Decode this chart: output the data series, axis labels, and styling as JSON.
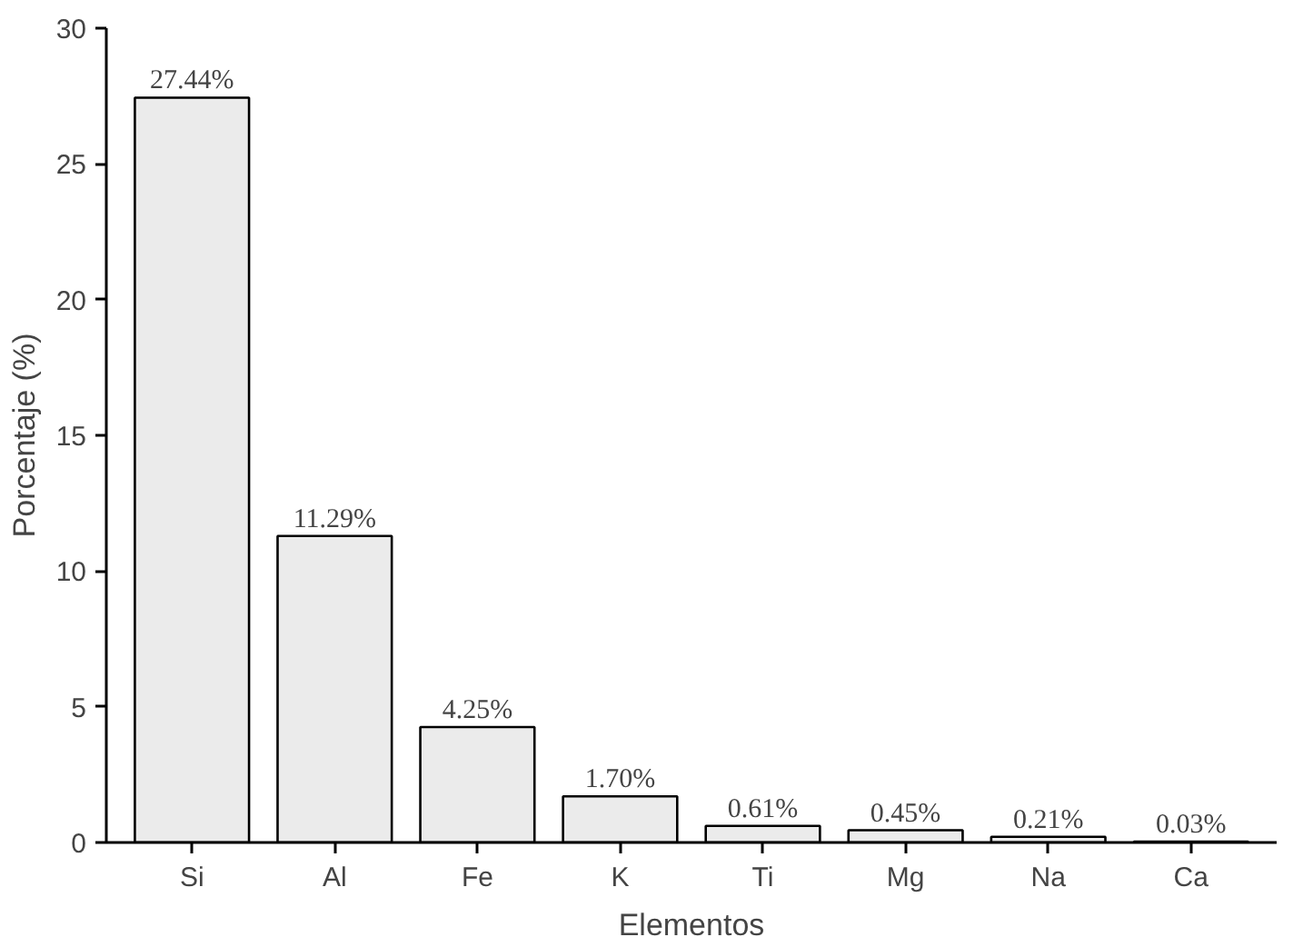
{
  "chart_data": {
    "type": "bar",
    "xlabel": "Elementos",
    "ylabel": "Porcentaje (%)",
    "categories": [
      "Si",
      "Al",
      "Fe",
      "K",
      "Ti",
      "Mg",
      "Na",
      "Ca"
    ],
    "values": [
      27.44,
      11.29,
      4.25,
      1.7,
      0.61,
      0.45,
      0.21,
      0.03
    ],
    "value_labels": [
      "27.44%",
      "11.29%",
      "4.25%",
      "1.70%",
      "0.61%",
      "0.45%",
      "0.21%",
      "0.03%"
    ],
    "color": "#ebebeb",
    "ylim": [
      0,
      30
    ],
    "yticks": [
      0,
      5,
      10,
      15,
      20,
      25,
      30
    ],
    "grid": false
  }
}
